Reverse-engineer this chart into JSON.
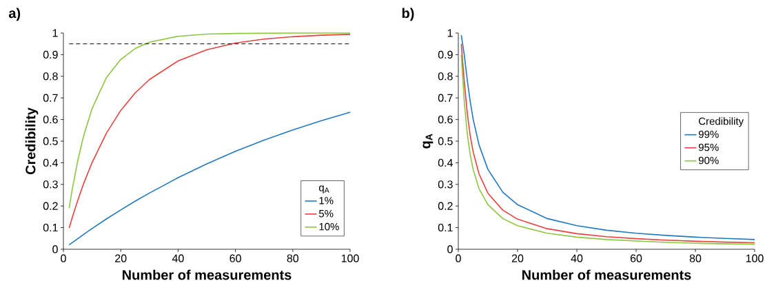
{
  "chart_data": [
    {
      "type": "line",
      "title": "a)",
      "xlabel": "Number of measurements",
      "ylabel": "Credibility",
      "legend_title": "q$_{A}$",
      "legend": "bottom right",
      "marker": "none",
      "line_style": "solid",
      "grid": false,
      "x": [
        2,
        3,
        5,
        7,
        10,
        15,
        20,
        25,
        30,
        40,
        50,
        60,
        70,
        80,
        90,
        100
      ],
      "xlim": [
        0,
        100
      ],
      "xticks": [
        0,
        20,
        40,
        60,
        80,
        100
      ],
      "ylim": [
        0,
        1
      ],
      "yticks": [
        0,
        0.1,
        0.2,
        0.3,
        0.4,
        0.5,
        0.6,
        0.7,
        0.8,
        0.9,
        1
      ],
      "ref_lines": [
        {
          "axis": "y",
          "value": 0.95,
          "color": "#000000",
          "line_style": "dashed"
        }
      ],
      "series": [
        {
          "name": "1%",
          "color": "#1f78c1",
          "values": [
            0.02,
            0.03,
            0.049,
            0.068,
            0.096,
            0.14,
            0.182,
            0.222,
            0.26,
            0.331,
            0.395,
            0.453,
            0.505,
            0.552,
            0.595,
            0.634
          ]
        },
        {
          "name": "5%",
          "color": "#e8413c",
          "values": [
            0.098,
            0.143,
            0.226,
            0.302,
            0.401,
            0.537,
            0.642,
            0.723,
            0.785,
            0.871,
            0.923,
            0.954,
            0.972,
            0.983,
            0.99,
            0.994
          ]
        },
        {
          "name": "10%",
          "color": "#8cc63f",
          "values": [
            0.19,
            0.271,
            0.41,
            0.522,
            0.651,
            0.794,
            0.878,
            0.928,
            0.958,
            0.985,
            0.995,
            0.998,
            0.999,
            1.0,
            1.0,
            1.0
          ]
        }
      ]
    },
    {
      "type": "line",
      "title": "b)",
      "xlabel": "Number of measurements",
      "ylabel": "**q$_{A}$**",
      "legend_title": "Credibility",
      "legend": "right",
      "marker": "none",
      "line_style": "solid",
      "grid": false,
      "x": [
        1,
        2,
        3,
        4,
        5,
        7,
        10,
        15,
        20,
        30,
        40,
        50,
        60,
        70,
        80,
        90,
        100
      ],
      "xlim": [
        0,
        100
      ],
      "xticks": [
        0,
        20,
        40,
        60,
        80,
        100
      ],
      "ylim": [
        0,
        1
      ],
      "yticks": [
        0,
        0.1,
        0.2,
        0.3,
        0.4,
        0.5,
        0.6,
        0.7,
        0.8,
        0.9,
        1
      ],
      "series": [
        {
          "name": "99%",
          "color": "#1f78c1",
          "values": [
            0.99,
            0.9,
            0.785,
            0.684,
            0.602,
            0.482,
            0.369,
            0.264,
            0.206,
            0.142,
            0.109,
            0.088,
            0.074,
            0.064,
            0.056,
            0.05,
            0.045
          ]
        },
        {
          "name": "95%",
          "color": "#e8413c",
          "values": [
            0.95,
            0.776,
            0.632,
            0.527,
            0.451,
            0.348,
            0.259,
            0.181,
            0.139,
            0.095,
            0.072,
            0.058,
            0.049,
            0.042,
            0.037,
            0.033,
            0.03
          ]
        },
        {
          "name": "90%",
          "color": "#8cc63f",
          "values": [
            0.9,
            0.684,
            0.536,
            0.438,
            0.369,
            0.28,
            0.206,
            0.142,
            0.109,
            0.074,
            0.056,
            0.045,
            0.038,
            0.032,
            0.028,
            0.025,
            0.023
          ]
        }
      ]
    }
  ]
}
